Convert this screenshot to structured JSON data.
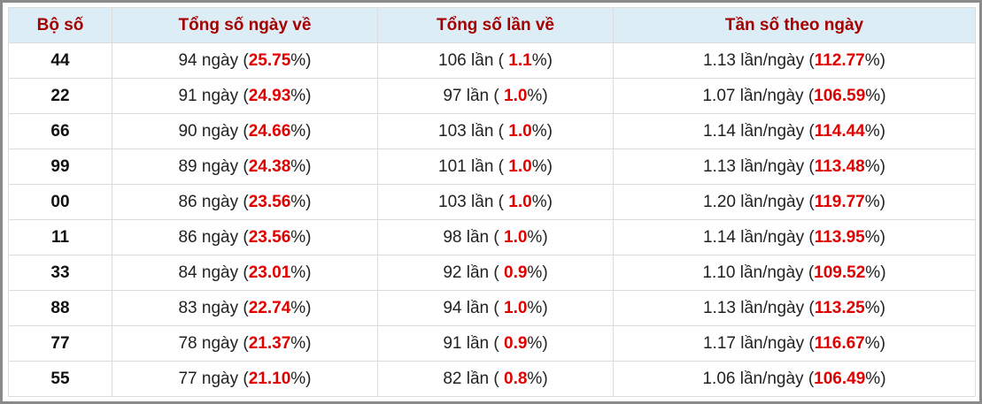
{
  "table": {
    "header": [
      "Bộ số",
      "Tổng số ngày về",
      "Tổng số lần về",
      "Tần số theo ngày"
    ],
    "rows": [
      [
        [
          "44"
        ],
        [
          "94 ngày (",
          "25.75",
          "%)"
        ],
        [
          "106 lần ( ",
          "1.1",
          "%)"
        ],
        [
          "1.13 lần/ngày (",
          "112.77",
          "%)"
        ]
      ],
      [
        [
          "22"
        ],
        [
          "91 ngày (",
          "24.93",
          "%)"
        ],
        [
          "97 lần ( ",
          "1.0",
          "%)"
        ],
        [
          "1.07 lần/ngày (",
          "106.59",
          "%)"
        ]
      ],
      [
        [
          "66"
        ],
        [
          "90 ngày (",
          "24.66",
          "%)"
        ],
        [
          "103 lần ( ",
          "1.0",
          "%)"
        ],
        [
          "1.14 lần/ngày (",
          "114.44",
          "%)"
        ]
      ],
      [
        [
          "99"
        ],
        [
          "89 ngày (",
          "24.38",
          "%)"
        ],
        [
          "101 lần ( ",
          "1.0",
          "%)"
        ],
        [
          "1.13 lần/ngày (",
          "113.48",
          "%)"
        ]
      ],
      [
        [
          "00"
        ],
        [
          "86 ngày (",
          "23.56",
          "%)"
        ],
        [
          "103 lần ( ",
          "1.0",
          "%)"
        ],
        [
          "1.20 lần/ngày (",
          "119.77",
          "%)"
        ]
      ],
      [
        [
          "11"
        ],
        [
          "86 ngày (",
          "23.56",
          "%)"
        ],
        [
          "98 lần ( ",
          "1.0",
          "%)"
        ],
        [
          "1.14 lần/ngày (",
          "113.95",
          "%)"
        ]
      ],
      [
        [
          "33"
        ],
        [
          "84 ngày (",
          "23.01",
          "%)"
        ],
        [
          "92 lần ( ",
          "0.9",
          "%)"
        ],
        [
          "1.10 lần/ngày (",
          "109.52",
          "%)"
        ]
      ],
      [
        [
          "88"
        ],
        [
          "83 ngày (",
          "22.74",
          "%)"
        ],
        [
          "94 lần ( ",
          "1.0",
          "%)"
        ],
        [
          "1.13 lần/ngày (",
          "113.25",
          "%)"
        ]
      ],
      [
        [
          "77"
        ],
        [
          "78 ngày (",
          "21.37",
          "%)"
        ],
        [
          "91 lần ( ",
          "0.9",
          "%)"
        ],
        [
          "1.17 lần/ngày (",
          "116.67",
          "%)"
        ]
      ],
      [
        [
          "55"
        ],
        [
          "77 ngày (",
          "21.10",
          "%)"
        ],
        [
          "82 lần ( ",
          "0.8",
          "%)"
        ],
        [
          "1.06 lần/ngày (",
          "106.49",
          "%)"
        ]
      ]
    ]
  }
}
